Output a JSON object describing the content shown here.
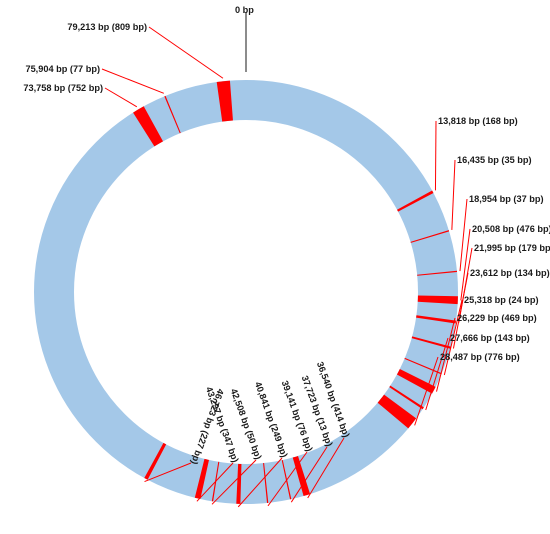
{
  "map": {
    "genome_length": 81000,
    "colors": {
      "ring": "#a4c8e8",
      "region": "#ff0000",
      "marker": "#1a1a1a"
    },
    "origin_label": "0 bp",
    "regions": [
      {
        "start": 13818,
        "length": 168,
        "label": "13,818 bp (168 bp)"
      },
      {
        "start": 16435,
        "length": 35,
        "label": "16,435 bp (35 bp)"
      },
      {
        "start": 18954,
        "length": 37,
        "label": "18,954 bp (37 bp)"
      },
      {
        "start": 20508,
        "length": 476,
        "label": "20,508 bp (476 bp)"
      },
      {
        "start": 21995,
        "length": 179,
        "label": "21,995 bp (179 bp)"
      },
      {
        "start": 23612,
        "length": 134,
        "label": "23,612 bp (134 bp)"
      },
      {
        "start": 25318,
        "length": 24,
        "label": "25,318 bp (24 bp)"
      },
      {
        "start": 26229,
        "length": 469,
        "label": "26,229 bp (469 bp)"
      },
      {
        "start": 27666,
        "length": 143,
        "label": "27,666 bp (143 bp)"
      },
      {
        "start": 28487,
        "length": 776,
        "label": "28,487 bp (776 bp)"
      },
      {
        "start": 36540,
        "length": 414,
        "label": "36,540 bp (414 bp)"
      },
      {
        "start": 37723,
        "length": 13,
        "label": "37,723 bp (13 bp)"
      },
      {
        "start": 39141,
        "length": 76,
        "label": "39,141 bp (76 bp)"
      },
      {
        "start": 40841,
        "length": 249,
        "label": "40,841 bp (249 bp)"
      },
      {
        "start": 42508,
        "length": 50,
        "label": "42,508 bp (50 bp)"
      },
      {
        "start": 43297,
        "length": 347,
        "label": "43,297 bp (347 bp)"
      },
      {
        "start": 46723,
        "length": 227,
        "label": "46,723 bp (227 bp)"
      },
      {
        "start": 73758,
        "length": 752,
        "label": "73,758 bp (752 bp)"
      },
      {
        "start": 75904,
        "length": 77,
        "label": "75,904 bp (77 bp)"
      },
      {
        "start": 79213,
        "length": 809,
        "label": "79,213 bp (809 bp)"
      }
    ]
  }
}
